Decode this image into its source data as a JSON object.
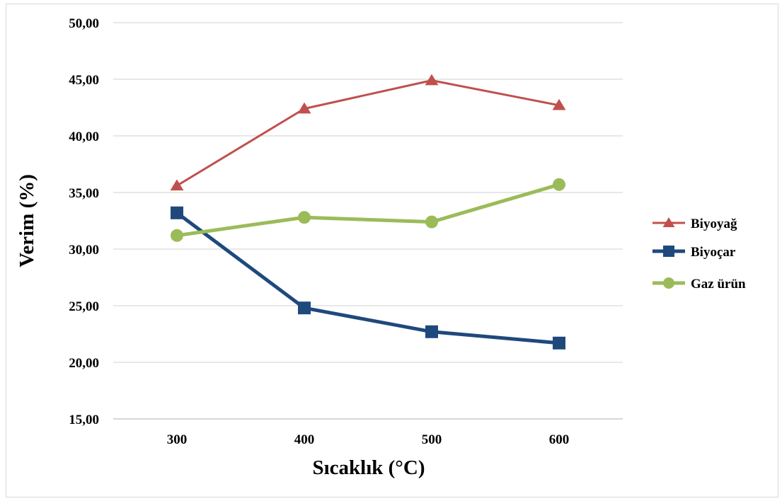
{
  "chart_data": {
    "type": "line",
    "title": "",
    "xlabel": "Sıcaklık (°C)",
    "ylabel": "Verim (%)",
    "categories": [
      "300",
      "400",
      "500",
      "600"
    ],
    "y_ticks": [
      "15,00",
      "20,00",
      "25,00",
      "30,00",
      "35,00",
      "40,00",
      "45,00",
      "50,00"
    ],
    "ylim": [
      15,
      50
    ],
    "grid": true,
    "legend_position": "right",
    "series": [
      {
        "name": "Biyoyağ",
        "values": [
          35.6,
          42.4,
          44.9,
          42.7
        ],
        "color": "#c0504d",
        "marker": "triangle"
      },
      {
        "name": "Biyoçar",
        "values": [
          33.2,
          24.8,
          22.7,
          21.7
        ],
        "color": "#1f497d",
        "marker": "square"
      },
      {
        "name": "Gaz ürün",
        "values": [
          31.2,
          32.8,
          32.4,
          35.7
        ],
        "color": "#9bbb59",
        "marker": "circle"
      }
    ]
  }
}
